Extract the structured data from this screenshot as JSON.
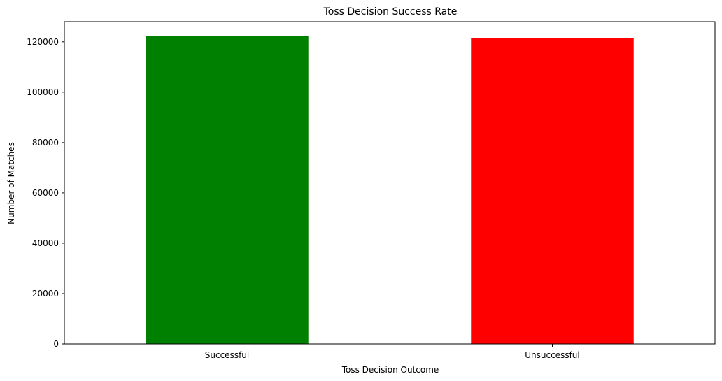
{
  "chart_data": {
    "type": "bar",
    "title": "Toss Decision Success Rate",
    "xlabel": "Toss Decision Outcome",
    "ylabel": "Number of Matches",
    "categories": [
      "Successful",
      "Unsuccessful"
    ],
    "values": [
      122300,
      121400
    ],
    "colors": [
      "#008000",
      "#ff0000"
    ],
    "ylim": [
      0,
      128000
    ],
    "yticks": [
      0,
      20000,
      40000,
      60000,
      80000,
      100000,
      120000
    ],
    "ytick_labels": [
      "0",
      "20000",
      "40000",
      "60000",
      "80000",
      "100000",
      "120000"
    ],
    "grid": false,
    "legend": "none"
  }
}
